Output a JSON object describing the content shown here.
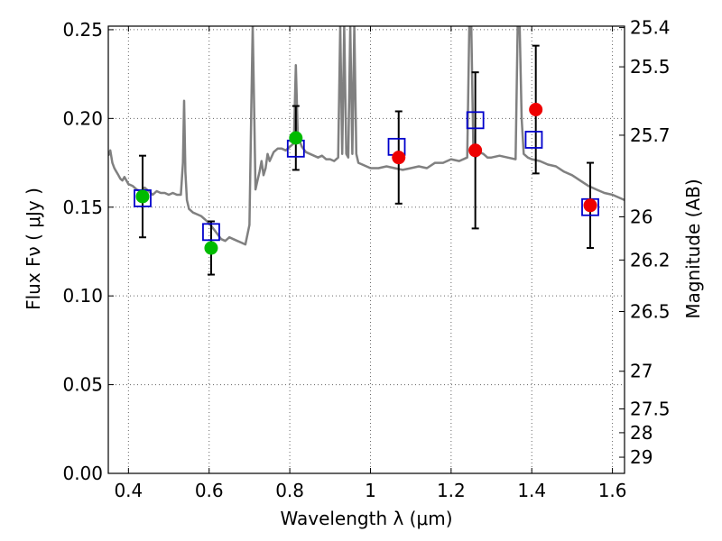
{
  "chart_data": {
    "type": "scatter",
    "xlabel": "Wavelength  λ (μm)",
    "ylabel": "Flux  Fν ( μJy )",
    "y2label": "Magnitude (AB)",
    "xlim": [
      0.35,
      1.63
    ],
    "ylim": [
      0.0,
      0.252
    ],
    "grid": true,
    "x_ticks": [
      0.4,
      0.6,
      0.8,
      1.0,
      1.2,
      1.4,
      1.6
    ],
    "x_tick_labels": [
      "0.4",
      "0.6",
      "0.8",
      "1",
      "1.2",
      "1.4",
      "1.6"
    ],
    "y_ticks": [
      0.0,
      0.05,
      0.1,
      0.15,
      0.2,
      0.25
    ],
    "y_tick_labels": [
      "0.00",
      "0.05",
      "0.10",
      "0.15",
      "0.20",
      "0.25"
    ],
    "y2_ticks": [
      "25.4",
      "25.5",
      "25.7",
      "26",
      "26.2",
      "26.5",
      "27",
      "27.5",
      "28",
      "29"
    ],
    "colors": {
      "spectrum": "#808080",
      "green_points": "#00bb00",
      "red_points": "#ee0000",
      "model_squares": "#0000cc",
      "error_bars": "#000000"
    },
    "series": [
      {
        "name": "spectrum",
        "kind": "line",
        "x": [
          0.35,
          0.355,
          0.36,
          0.365,
          0.37,
          0.375,
          0.38,
          0.385,
          0.39,
          0.395,
          0.4,
          0.41,
          0.42,
          0.43,
          0.44,
          0.45,
          0.46,
          0.47,
          0.48,
          0.49,
          0.5,
          0.51,
          0.52,
          0.53,
          0.535,
          0.538,
          0.541,
          0.545,
          0.55,
          0.56,
          0.57,
          0.58,
          0.59,
          0.6,
          0.61,
          0.62,
          0.63,
          0.64,
          0.65,
          0.66,
          0.67,
          0.68,
          0.69,
          0.7,
          0.705,
          0.708,
          0.712,
          0.715,
          0.72,
          0.725,
          0.73,
          0.735,
          0.74,
          0.745,
          0.75,
          0.76,
          0.77,
          0.78,
          0.79,
          0.8,
          0.81,
          0.815,
          0.82,
          0.83,
          0.84,
          0.85,
          0.86,
          0.87,
          0.88,
          0.89,
          0.9,
          0.91,
          0.92,
          0.925,
          0.93,
          0.935,
          0.94,
          0.945,
          0.95,
          0.955,
          0.96,
          0.965,
          0.97,
          0.98,
          0.99,
          1.0,
          1.02,
          1.04,
          1.06,
          1.08,
          1.1,
          1.12,
          1.14,
          1.16,
          1.18,
          1.2,
          1.22,
          1.24,
          1.245,
          1.25,
          1.255,
          1.26,
          1.27,
          1.28,
          1.29,
          1.3,
          1.32,
          1.34,
          1.36,
          1.365,
          1.37,
          1.375,
          1.38,
          1.39,
          1.4,
          1.42,
          1.44,
          1.46,
          1.48,
          1.5,
          1.52,
          1.54,
          1.56,
          1.58,
          1.6,
          1.62,
          1.63
        ],
        "y": [
          0.179,
          0.182,
          0.175,
          0.172,
          0.17,
          0.168,
          0.166,
          0.165,
          0.167,
          0.165,
          0.163,
          0.162,
          0.16,
          0.159,
          0.161,
          0.159,
          0.157,
          0.159,
          0.158,
          0.158,
          0.157,
          0.158,
          0.157,
          0.157,
          0.175,
          0.21,
          0.17,
          0.154,
          0.149,
          0.147,
          0.146,
          0.145,
          0.143,
          0.141,
          0.138,
          0.135,
          0.132,
          0.131,
          0.133,
          0.132,
          0.131,
          0.13,
          0.129,
          0.14,
          0.21,
          0.255,
          0.2,
          0.16,
          0.165,
          0.17,
          0.176,
          0.168,
          0.172,
          0.18,
          0.176,
          0.181,
          0.183,
          0.183,
          0.182,
          0.184,
          0.186,
          0.23,
          0.19,
          0.184,
          0.181,
          0.18,
          0.179,
          0.178,
          0.179,
          0.177,
          0.177,
          0.176,
          0.178,
          0.255,
          0.18,
          0.255,
          0.18,
          0.178,
          0.255,
          0.18,
          0.255,
          0.18,
          0.175,
          0.174,
          0.173,
          0.172,
          0.172,
          0.173,
          0.172,
          0.171,
          0.172,
          0.173,
          0.172,
          0.175,
          0.175,
          0.177,
          0.176,
          0.178,
          0.255,
          0.255,
          0.185,
          0.178,
          0.181,
          0.18,
          0.178,
          0.178,
          0.179,
          0.178,
          0.177,
          0.255,
          0.255,
          0.2,
          0.18,
          0.178,
          0.177,
          0.176,
          0.174,
          0.173,
          0.17,
          0.168,
          0.165,
          0.162,
          0.16,
          0.158,
          0.157,
          0.155,
          0.154
        ]
      },
      {
        "name": "observed (green)",
        "kind": "points",
        "x": [
          0.435,
          0.605,
          0.815
        ],
        "y": [
          0.156,
          0.127,
          0.189
        ],
        "err": [
          0.023,
          0.015,
          0.018
        ]
      },
      {
        "name": "observed (red)",
        "kind": "points",
        "x": [
          1.07,
          1.26,
          1.41,
          1.545
        ],
        "y": [
          0.178,
          0.182,
          0.205,
          0.151
        ],
        "err": [
          0.026,
          0.044,
          0.036,
          0.024
        ]
      },
      {
        "name": "model photometry",
        "kind": "squares",
        "x": [
          0.435,
          0.605,
          0.815,
          1.065,
          1.26,
          1.405,
          1.545
        ],
        "y": [
          0.155,
          0.136,
          0.183,
          0.184,
          0.199,
          0.188,
          0.15
        ]
      }
    ]
  }
}
